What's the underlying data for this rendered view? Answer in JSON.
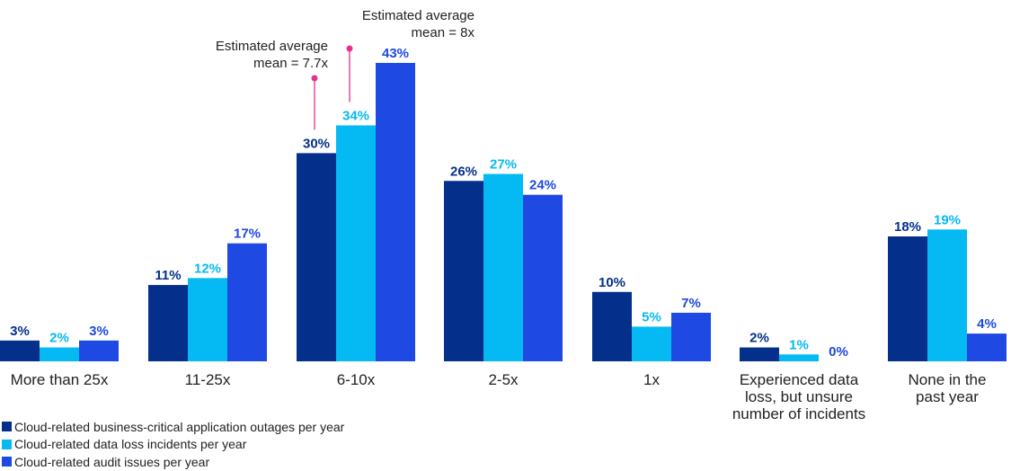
{
  "chart_data": {
    "type": "bar",
    "categories": [
      [
        "More than 25x"
      ],
      [
        "11-25x"
      ],
      [
        "6-10x"
      ],
      [
        "2-5x"
      ],
      [
        "1x"
      ],
      [
        "Experienced data",
        "loss, but unsure",
        "number of incidents"
      ],
      [
        "None in the",
        "past year"
      ]
    ],
    "series": [
      {
        "name": "Cloud-related business-critical application outages per year",
        "color": "#04308c",
        "values": [
          3,
          11,
          30,
          26,
          10,
          2,
          18
        ],
        "labels": [
          "3%",
          "11%",
          "30%",
          "26%",
          "10%",
          "2%",
          "18%"
        ]
      },
      {
        "name": "Cloud-related data loss incidents per year",
        "color": "#05b9f2",
        "values": [
          2,
          12,
          34,
          27,
          5,
          1,
          19
        ],
        "labels": [
          "2%",
          "12%",
          "34%",
          "27%",
          "5%",
          "1%",
          "19%"
        ]
      },
      {
        "name": "Cloud-related audit issues per year",
        "color": "#1e49e2",
        "values": [
          3,
          17,
          43,
          24,
          7,
          0,
          4
        ],
        "labels": [
          "3%",
          "17%",
          "43%",
          "24%",
          "7%",
          "0%",
          "4%"
        ]
      }
    ],
    "annotations": [
      {
        "category_index": 2,
        "series_index": 0,
        "lines": [
          "Estimated average",
          "mean = 7.7x"
        ]
      },
      {
        "category_index": 2,
        "series_index": 1,
        "lines": [
          "Estimated average",
          "mean = 8x"
        ]
      }
    ],
    "annotation_color": "#e8318c",
    "ylim": [
      0,
      43
    ],
    "grid": false,
    "legend_position": "bottom-left"
  }
}
